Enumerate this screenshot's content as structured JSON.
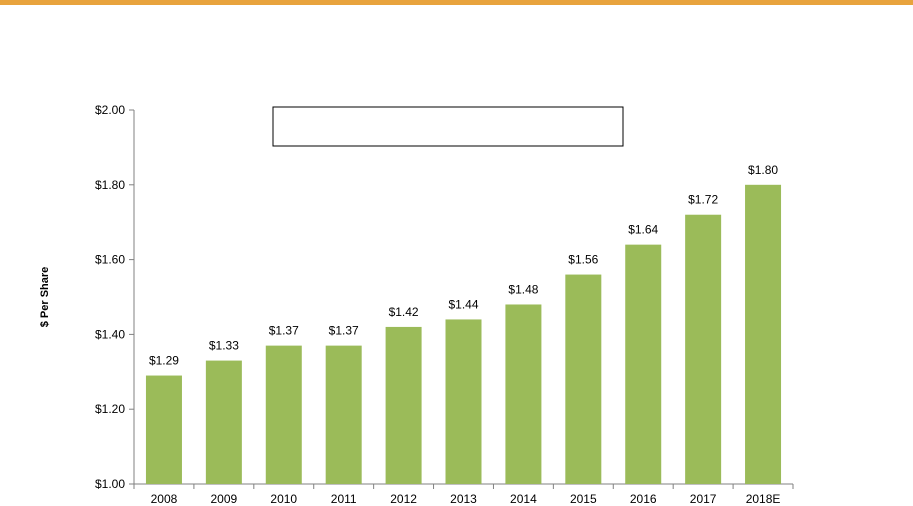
{
  "colors": {
    "accent_rule": "#E8A33D",
    "bar": "#9BBB59",
    "axis": "#808080"
  },
  "chart_data": {
    "type": "bar",
    "title": "",
    "xlabel": "",
    "ylabel": "$ Per Share",
    "ylim": [
      1.0,
      2.0
    ],
    "yticks": [
      1.0,
      1.2,
      1.4,
      1.6,
      1.8,
      2.0
    ],
    "ytick_labels": [
      "$1.00",
      "$1.20",
      "$1.40",
      "$1.60",
      "$1.80",
      "$2.00"
    ],
    "categories": [
      "2008",
      "2009",
      "2010",
      "2011",
      "2012",
      "2013",
      "2014",
      "2015",
      "2016",
      "2017",
      "2018E"
    ],
    "values": [
      1.29,
      1.33,
      1.37,
      1.37,
      1.42,
      1.44,
      1.48,
      1.56,
      1.64,
      1.72,
      1.8
    ],
    "data_labels": [
      "$1.29",
      "$1.33",
      "$1.37",
      "$1.37",
      "$1.42",
      "$1.44",
      "$1.48",
      "$1.56",
      "$1.64",
      "$1.72",
      "$1.80"
    ],
    "annotation_box": "",
    "grid": false,
    "legend": "none"
  }
}
